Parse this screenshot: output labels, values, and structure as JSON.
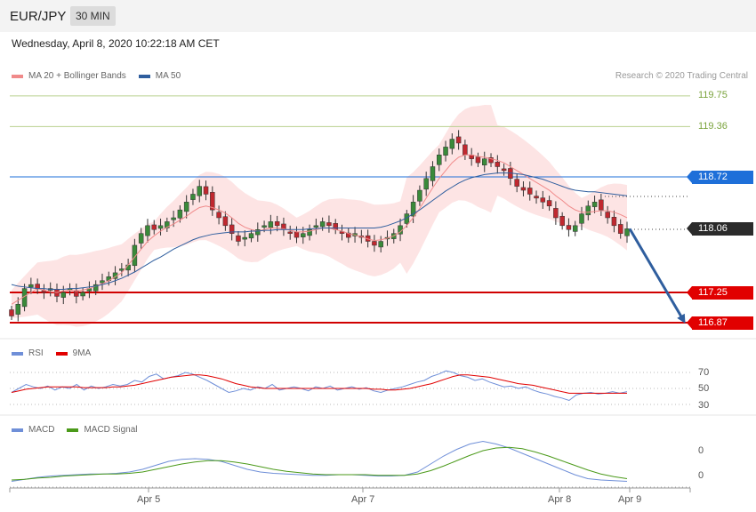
{
  "header": {
    "symbol": "EUR/JPY",
    "interval": "30 MIN"
  },
  "datetime": "Wednesday, April 8, 2020 10:22:18 AM CET",
  "legend": {
    "ma20_label": "MA 20 + Bollinger Bands",
    "ma20_color": "#f08a8a",
    "ma50_label": "MA 50",
    "ma50_color": "#2f5e9e",
    "copyright": "Research © 2020 Trading Central"
  },
  "levels": {
    "r2": {
      "value": "119.75",
      "color": "#7aa33c"
    },
    "r1": {
      "value": "119.36",
      "color": "#7aa33c"
    },
    "pivot": {
      "value": "118.72",
      "color": "#1e6fd9"
    },
    "last": {
      "value": "118.06",
      "color": "#2b2b2b"
    },
    "s1": {
      "value": "117.25",
      "color": "#e10000"
    },
    "s2": {
      "value": "116.87",
      "color": "#e10000"
    }
  },
  "rsi_legend": {
    "rsi_label": "RSI",
    "rsi_color": "#6f8fd8",
    "ma9_label": "9MA",
    "ma9_color": "#e10000"
  },
  "macd_legend": {
    "macd_label": "MACD",
    "macd_color": "#6f8fd8",
    "signal_label": "MACD Signal",
    "signal_color": "#4b9a1a"
  },
  "rsi_ticks": [
    "70",
    "50",
    "30"
  ],
  "macd_ticks": [
    "0",
    "0"
  ],
  "x_ticks": [
    "Apr 5",
    "Apr 7",
    "Apr 8",
    "Apr 9"
  ],
  "chart_data": {
    "type": "candlestick",
    "ylim": [
      116.66,
      119.95
    ],
    "x_categories_marked": [
      "Apr 5",
      "Apr 7",
      "Apr 8",
      "Apr 9"
    ],
    "key_levels": [
      119.75,
      119.36,
      118.72,
      118.06,
      117.25,
      116.87
    ],
    "projection": {
      "from": 118.06,
      "to": 116.87,
      "direction": "down"
    },
    "close_path": [
      116.95,
      117.1,
      117.3,
      117.35,
      117.3,
      117.25,
      117.3,
      117.2,
      117.25,
      117.3,
      117.2,
      117.25,
      117.3,
      117.35,
      117.4,
      117.45,
      117.5,
      117.55,
      117.6,
      117.85,
      118.0,
      118.1,
      118.05,
      118.1,
      118.15,
      118.2,
      118.3,
      118.4,
      118.5,
      118.6,
      118.5,
      118.3,
      118.2,
      118.1,
      118.0,
      117.9,
      117.95,
      118.0,
      118.05,
      118.1,
      118.15,
      118.1,
      118.05,
      118.0,
      117.95,
      118.0,
      118.05,
      118.1,
      118.15,
      118.1,
      118.05,
      118.0,
      117.95,
      118.0,
      117.95,
      117.9,
      117.85,
      117.9,
      117.95,
      118.0,
      118.1,
      118.25,
      118.4,
      118.55,
      118.7,
      118.85,
      119.0,
      119.1,
      119.2,
      119.15,
      119.0,
      118.95,
      118.9,
      118.95,
      118.9,
      118.85,
      118.8,
      118.7,
      118.6,
      118.55,
      118.5,
      118.45,
      118.4,
      118.35,
      118.2,
      118.1,
      118.05,
      118.1,
      118.25,
      118.35,
      118.4,
      118.3,
      118.2,
      118.1,
      118.0,
      118.06
    ],
    "ma20_path": [
      117.1,
      117.15,
      117.2,
      117.25,
      117.3,
      117.28,
      117.26,
      117.25,
      117.27,
      117.28,
      117.27,
      117.28,
      117.3,
      117.33,
      117.36,
      117.4,
      117.45,
      117.5,
      117.6,
      117.7,
      117.8,
      117.9,
      117.97,
      118.03,
      118.08,
      118.12,
      118.17,
      118.22,
      118.28,
      118.33,
      118.35,
      118.33,
      118.3,
      118.26,
      118.2,
      118.13,
      118.08,
      118.05,
      118.03,
      118.05,
      118.07,
      118.07,
      118.06,
      118.04,
      118.02,
      118.02,
      118.03,
      118.05,
      118.07,
      118.07,
      118.05,
      118.03,
      118.0,
      117.98,
      117.96,
      117.93,
      117.91,
      117.92,
      117.94,
      117.97,
      118.02,
      118.1,
      118.2,
      118.32,
      118.45,
      118.58,
      118.7,
      118.8,
      118.9,
      118.97,
      119.0,
      119.0,
      118.98,
      118.97,
      118.95,
      118.93,
      118.9,
      118.85,
      118.8,
      118.75,
      118.7,
      118.65,
      118.6,
      118.55,
      118.48,
      118.42,
      118.35,
      118.3,
      118.27,
      118.27,
      118.28,
      118.29,
      118.29,
      118.27,
      118.24,
      118.2
    ],
    "ma50_path": [
      117.35,
      117.33,
      117.32,
      117.31,
      117.3,
      117.3,
      117.29,
      117.29,
      117.29,
      117.3,
      117.3,
      117.31,
      117.32,
      117.33,
      117.35,
      117.37,
      117.4,
      117.43,
      117.47,
      117.51,
      117.56,
      117.61,
      117.66,
      117.7,
      117.75,
      117.8,
      117.84,
      117.88,
      117.92,
      117.95,
      117.97,
      117.99,
      118.0,
      118.01,
      118.02,
      118.02,
      118.02,
      118.03,
      118.03,
      118.04,
      118.04,
      118.05,
      118.05,
      118.05,
      118.05,
      118.05,
      118.06,
      118.06,
      118.07,
      118.07,
      118.07,
      118.07,
      118.07,
      118.07,
      118.07,
      118.07,
      118.07,
      118.08,
      118.1,
      118.13,
      118.16,
      118.2,
      118.25,
      118.3,
      118.36,
      118.42,
      118.48,
      118.54,
      118.59,
      118.64,
      118.68,
      118.71,
      118.73,
      118.75,
      118.76,
      118.77,
      118.77,
      118.77,
      118.76,
      118.75,
      118.73,
      118.71,
      118.69,
      118.66,
      118.63,
      118.6,
      118.57,
      118.55,
      118.54,
      118.53,
      118.53,
      118.52,
      118.51,
      118.5,
      118.49,
      118.48
    ],
    "rsi_ylim": [
      20,
      80
    ],
    "rsi_ticks": [
      70,
      50,
      30
    ],
    "rsi_path": [
      45,
      50,
      55,
      52,
      50,
      53,
      48,
      52,
      50,
      55,
      48,
      53,
      50,
      52,
      55,
      53,
      55,
      60,
      58,
      65,
      68,
      62,
      64,
      66,
      70,
      68,
      64,
      60,
      55,
      50,
      45,
      47,
      50,
      48,
      52,
      50,
      55,
      48,
      50,
      52,
      50,
      47,
      52,
      50,
      53,
      48,
      50,
      52,
      49,
      51,
      47,
      45,
      48,
      50,
      52,
      55,
      58,
      60,
      65,
      68,
      72,
      70,
      66,
      64,
      60,
      62,
      58,
      55,
      52,
      53,
      50,
      52,
      48,
      45,
      43,
      40,
      38,
      35,
      42,
      44,
      45,
      43,
      44,
      46,
      44,
      46
    ],
    "rsi_ma9_path": [
      45,
      47,
      49,
      50,
      51,
      52,
      52,
      52,
      52,
      52,
      51,
      51,
      51,
      51,
      52,
      52,
      53,
      54,
      56,
      58,
      60,
      62,
      64,
      65,
      66,
      67,
      67,
      66,
      64,
      62,
      59,
      56,
      54,
      52,
      51,
      50,
      50,
      50,
      50,
      50,
      50,
      50,
      50,
      50,
      50,
      50,
      50,
      50,
      50,
      50,
      49,
      49,
      48,
      48,
      49,
      50,
      52,
      54,
      56,
      59,
      62,
      65,
      67,
      67,
      66,
      65,
      64,
      62,
      60,
      58,
      56,
      55,
      54,
      52,
      50,
      48,
      46,
      44,
      44,
      44,
      44,
      44,
      44,
      44,
      44,
      44
    ],
    "macd_path": [
      -0.06,
      -0.03,
      0.0,
      0.02,
      0.03,
      0.04,
      0.05,
      0.05,
      0.06,
      0.08,
      0.12,
      0.18,
      0.24,
      0.27,
      0.28,
      0.27,
      0.24,
      0.18,
      0.12,
      0.08,
      0.06,
      0.05,
      0.04,
      0.03,
      0.03,
      0.04,
      0.04,
      0.03,
      0.02,
      0.02,
      0.03,
      0.08,
      0.2,
      0.32,
      0.42,
      0.5,
      0.54,
      0.5,
      0.44,
      0.36,
      0.28,
      0.2,
      0.12,
      0.04,
      -0.02,
      -0.04,
      -0.05,
      -0.06
    ],
    "macd_signal_path": [
      -0.04,
      -0.03,
      -0.01,
      0.0,
      0.02,
      0.03,
      0.04,
      0.05,
      0.05,
      0.06,
      0.08,
      0.12,
      0.16,
      0.2,
      0.23,
      0.25,
      0.25,
      0.23,
      0.2,
      0.16,
      0.12,
      0.09,
      0.07,
      0.05,
      0.04,
      0.04,
      0.04,
      0.04,
      0.03,
      0.03,
      0.03,
      0.05,
      0.1,
      0.17,
      0.25,
      0.33,
      0.4,
      0.44,
      0.45,
      0.43,
      0.38,
      0.32,
      0.25,
      0.18,
      0.11,
      0.05,
      0.01,
      -0.02
    ],
    "macd_ylim": [
      -0.12,
      0.62
    ],
    "subplots": [
      "RSI",
      "MACD"
    ]
  }
}
